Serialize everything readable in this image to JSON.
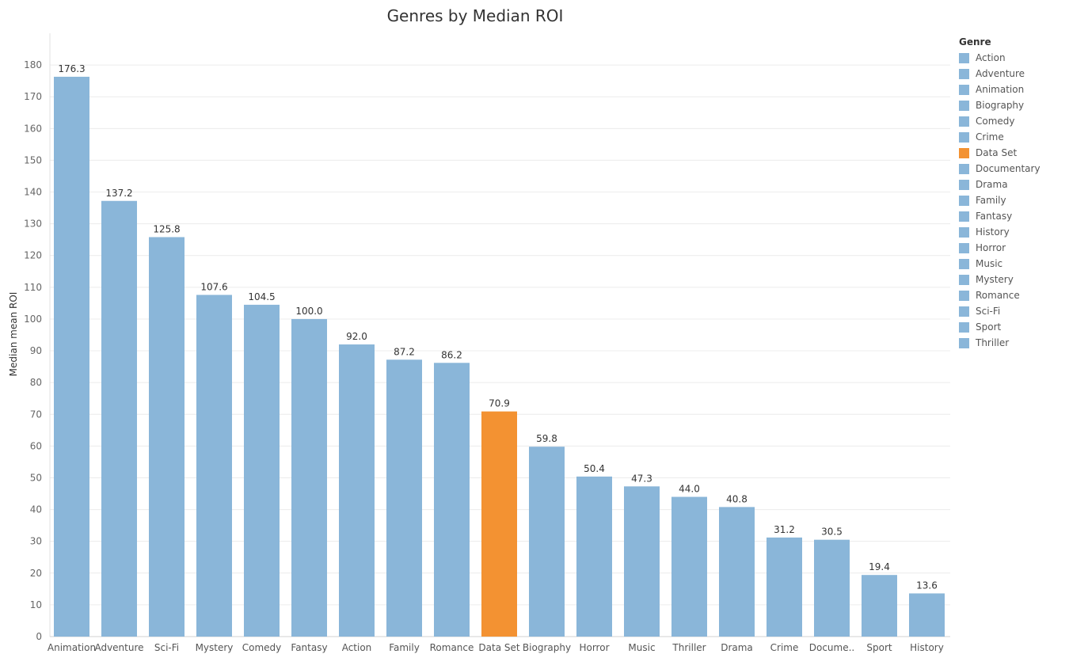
{
  "chart_data": {
    "type": "bar",
    "title": "Genres by Median ROI",
    "xlabel": "",
    "ylabel": "Median mean ROI",
    "ylim": [
      0,
      180
    ],
    "yticks": [
      0,
      10,
      20,
      30,
      40,
      50,
      60,
      70,
      80,
      90,
      100,
      110,
      120,
      130,
      140,
      150,
      160,
      170,
      180
    ],
    "grid": true,
    "categories": [
      "Animation",
      "Adventure",
      "Sci-Fi",
      "Mystery",
      "Comedy",
      "Fantasy",
      "Action",
      "Family",
      "Romance",
      "Data Set",
      "Biography",
      "Horror",
      "Music",
      "Thriller",
      "Drama",
      "Crime",
      "Docume..",
      "Sport",
      "History"
    ],
    "values": [
      176.3,
      137.2,
      125.8,
      107.6,
      104.5,
      100.0,
      92.0,
      87.2,
      86.2,
      70.9,
      59.8,
      50.4,
      47.3,
      44.0,
      40.8,
      31.2,
      30.5,
      19.4,
      13.6
    ],
    "value_labels": [
      "176.3",
      "137.2",
      "125.8",
      "107.6",
      "104.5",
      "100.0",
      "92.0",
      "87.2",
      "86.2",
      "70.9",
      "59.8",
      "50.4",
      "47.3",
      "44.0",
      "40.8",
      "31.2",
      "30.5",
      "19.4",
      "13.6"
    ],
    "highlight_category": "Data Set",
    "colors": {
      "default": "#8ab6d9",
      "highlight": "#f39232",
      "grid": "#ececec"
    },
    "legend": {
      "title": "Genre",
      "position": "right",
      "items": [
        "Action",
        "Adventure",
        "Animation",
        "Biography",
        "Comedy",
        "Crime",
        "Data Set",
        "Documentary",
        "Drama",
        "Family",
        "Fantasy",
        "History",
        "Horror",
        "Music",
        "Mystery",
        "Romance",
        "Sci-Fi",
        "Sport",
        "Thriller"
      ]
    }
  }
}
